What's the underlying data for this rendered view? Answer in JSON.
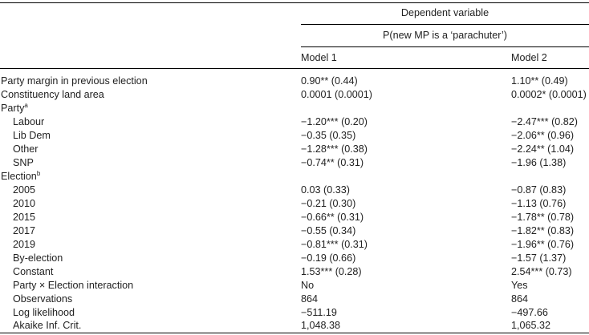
{
  "header": {
    "dependent_variable": "Dependent variable",
    "outcome": "P(new MP is a ‘parachuter’)",
    "model1": "Model 1",
    "model2": "Model 2"
  },
  "rows": {
    "party_margin": {
      "label": "Party margin in previous election",
      "m1": "0.90** (0.44)",
      "m2": "1.10** (0.49)"
    },
    "land_area": {
      "label": "Constituency land area",
      "m1": "0.0001 (0.0001)",
      "m2": "0.0002* (0.0001)"
    },
    "party_group": {
      "label": "Party",
      "sup": "a"
    },
    "labour": {
      "label": "Labour",
      "m1": "−1.20*** (0.20)",
      "m2": "−2.47*** (0.82)"
    },
    "libdem": {
      "label": "Lib Dem",
      "m1": "−0.35 (0.35)",
      "m2": "−2.06** (0.96)"
    },
    "other": {
      "label": "Other",
      "m1": "−1.28*** (0.38)",
      "m2": "−2.24** (1.04)"
    },
    "snp": {
      "label": "SNP",
      "m1": "−0.74** (0.31)",
      "m2": "−1.96 (1.38)"
    },
    "election_group": {
      "label": "Election",
      "sup": "b"
    },
    "e2005": {
      "label": "2005",
      "m1": "0.03 (0.33)",
      "m2": "−0.87 (0.83)"
    },
    "e2010": {
      "label": "2010",
      "m1": "−0.21 (0.30)",
      "m2": "−1.13 (0.76)"
    },
    "e2015": {
      "label": "2015",
      "m1": "−0.66** (0.31)",
      "m2": "−1.78** (0.78)"
    },
    "e2017": {
      "label": "2017",
      "m1": "−0.55 (0.34)",
      "m2": "−1.82** (0.83)"
    },
    "e2019": {
      "label": "2019",
      "m1": "−0.81*** (0.31)",
      "m2": "−1.96** (0.76)"
    },
    "byelection": {
      "label": "By-election",
      "m1": "−0.19 (0.66)",
      "m2": "−1.57 (1.37)"
    },
    "constant": {
      "label": "Constant",
      "m1": "1.53*** (0.28)",
      "m2": "2.54*** (0.73)"
    },
    "interaction": {
      "label": "Party × Election interaction",
      "m1": "No",
      "m2": "Yes"
    },
    "observations": {
      "label": "Observations",
      "m1": "864",
      "m2": "864"
    },
    "loglik": {
      "label": "Log likelihood",
      "m1": "−511.19",
      "m2": "−497.66"
    },
    "aic": {
      "label": "Akaike Inf. Crit.",
      "m1": "1,048.38",
      "m2": "1,065.32"
    }
  }
}
